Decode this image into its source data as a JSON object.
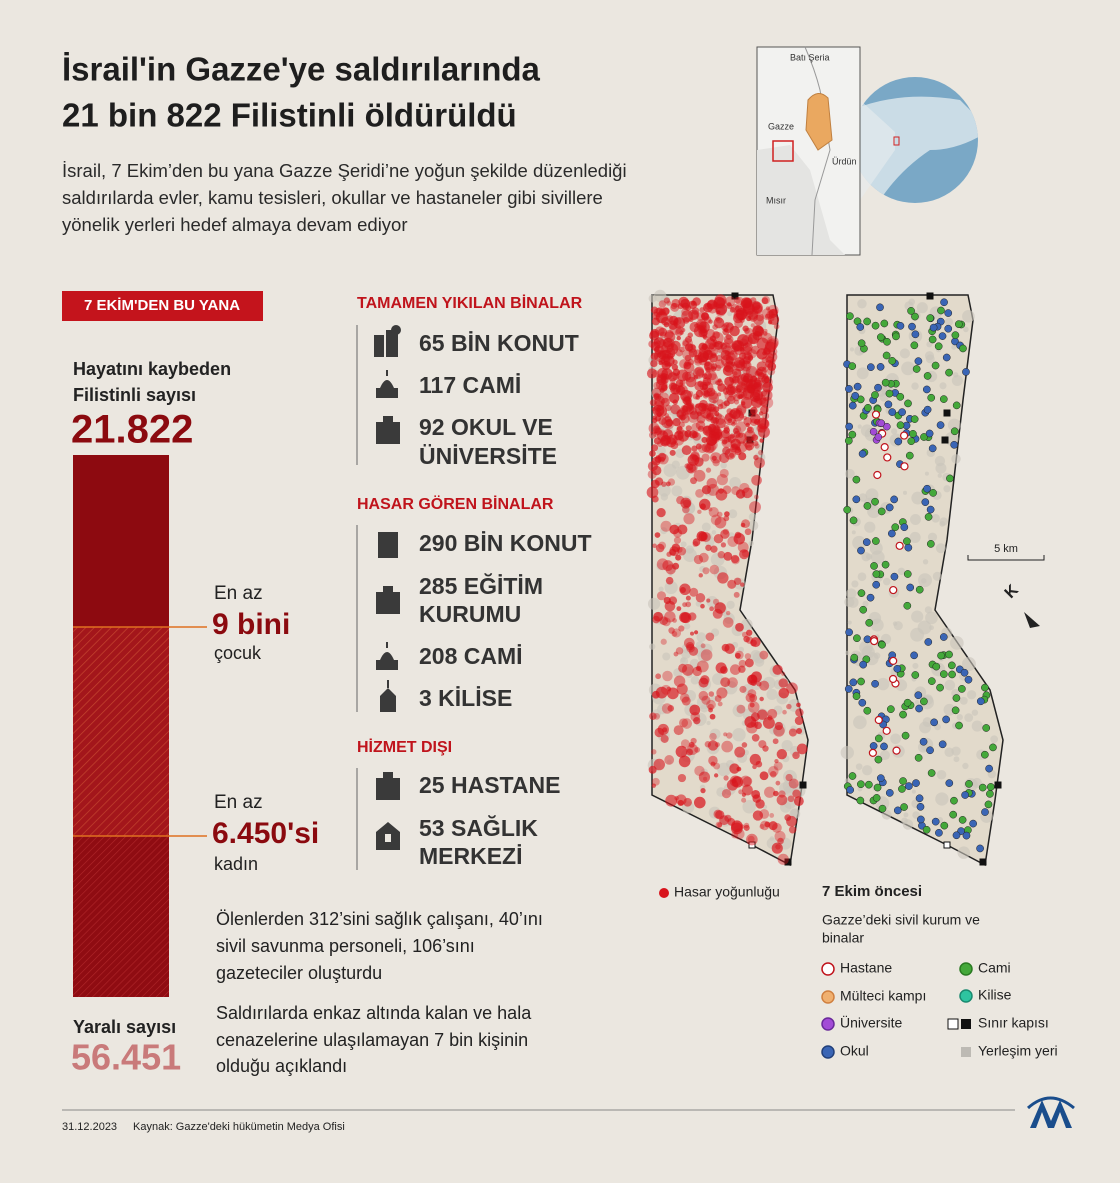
{
  "header": {
    "title_lines": [
      "İsrail'in Gazze'ye saldırılarında",
      "21 bin 822 Filistinli öldürüldü"
    ],
    "subtitle_lines": [
      "İsrail, 7 Ekim’den bu yana Gazze Şeridi’ne yoğun şekilde düzenlediği",
      "saldırılarda evler, kamu tesisleri, okullar ve hastaneler gibi sivillere",
      "yönelik yerleri hedef almaya devam ediyor"
    ]
  },
  "locator_map": {
    "labels": [
      "Batı Şeria",
      "Gazze",
      "Ürdün",
      "Mısır"
    ]
  },
  "badge": "7 EKİM'DEN  BU YANA",
  "deaths": {
    "label_lines": [
      "Hayatını kaybeden",
      "Filistinli sayısı"
    ],
    "value": "21.822"
  },
  "children": {
    "prefix": "En az",
    "value": "9 bini",
    "suffix": "çocuk"
  },
  "women": {
    "prefix": "En az",
    "value": "6.450'si",
    "suffix": "kadın"
  },
  "injured": {
    "label": "Yaralı sayısı",
    "value": "56.451"
  },
  "notes": [
    [
      "Ölenlerden 312’sini sağlık çalışanı, 40’ını",
      "sivil savunma personeli, 106’sını",
      "gazeteciler oluşturdu"
    ],
    [
      "Saldırılarda enkaz altında kalan ve hala",
      "cenazelerine ulaşılamayan 7 bin kişinin",
      "olduğu açıklandı"
    ]
  ],
  "sections": [
    {
      "title": "TAMAMEN YIKILAN BİNALAR",
      "items": [
        {
          "lines": [
            "65 BİN KONUT"
          ]
        },
        {
          "lines": [
            "117 CAMİ"
          ]
        },
        {
          "lines": [
            "92 OKUL VE",
            "ÜNİVERSİTE"
          ]
        }
      ]
    },
    {
      "title": "HASAR GÖREN BİNALAR",
      "items": [
        {
          "lines": [
            "290 BİN KONUT"
          ]
        },
        {
          "lines": [
            "285 EĞİTİM",
            "KURUMU"
          ]
        },
        {
          "lines": [
            "208 CAMİ"
          ]
        },
        {
          "lines": [
            "3 KİLİSE"
          ]
        }
      ]
    },
    {
      "title": "HİZMET DIŞI",
      "items": [
        {
          "lines": [
            "25 HASTANE"
          ]
        },
        {
          "lines": [
            "53 SAĞLIK",
            "MERKEZİ"
          ]
        }
      ]
    }
  ],
  "map": {
    "scale": "5 km",
    "north": "K",
    "damage_legend": "Hasar yoğunluğu",
    "legend_title": "7 Ekim öncesi",
    "legend_subtitle_lines": [
      "Gazze’deki sivil kurum ve",
      "binalar"
    ],
    "legend_items": [
      "Hastane",
      "Mülteci kampı",
      "Üniversite",
      "Okul",
      "Cami",
      "Kilise",
      "Sınır kapısı",
      "Yerleşim yeri"
    ]
  },
  "footer": {
    "date": "31.12.2023",
    "source": "Kaynak: Gazze'deki hükümetin Medya Ofisi"
  }
}
